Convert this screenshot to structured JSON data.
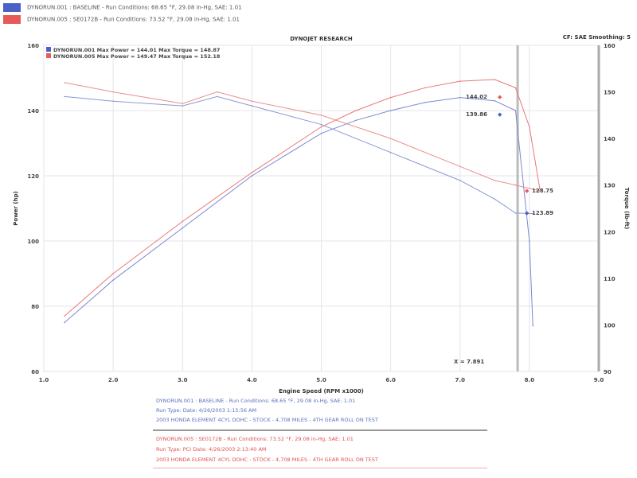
{
  "header": {
    "run1": "DYNORUN.001 : BASELINE  -  Run Conditions: 68.65 °F, 29.08 in-Hg, SAE: 1.01",
    "run2": "DYNORUN.005 : SE0172B  -  Run Conditions: 73.52 °F, 29.08 in-Hg, SAE: 1.01",
    "colors": {
      "run1": "#4a62c8",
      "run2": "#e85a5a"
    }
  },
  "chart_data": {
    "type": "line",
    "title": "DYNOJET RESEARCH",
    "subtitle": "CF: SAE  Smoothing: 5",
    "xlabel": "Engine Speed (RPM x1000)",
    "ylabel": "Power (hp)",
    "y2label": "Torque (lb-ft)",
    "xlim": [
      1.0,
      9.0
    ],
    "ylim": [
      60,
      160
    ],
    "y2lim": [
      90,
      160
    ],
    "xticks": [
      "1.0",
      "2.0",
      "3.0",
      "4.0",
      "5.0",
      "6.0",
      "7.0",
      "8.0",
      "9.0"
    ],
    "yticks": [
      "60",
      "80",
      "100",
      "120",
      "140",
      "160"
    ],
    "y2ticks": [
      "90",
      "100",
      "110",
      "120",
      "130",
      "140",
      "150",
      "160"
    ],
    "grid": true,
    "legend": [
      "DYNORUN.001 Max Power = 144.01    Max Torque = 148.87",
      "DYNORUN.005 Max Power = 149.47    Max Torque = 152.18"
    ],
    "legend_position": "top-left",
    "series": [
      {
        "axis": "power",
        "color": "#7a8ad0",
        "x": [
          1.3,
          2.0,
          3.0,
          4.0,
          5.0,
          5.5,
          6.0,
          6.5,
          7.0,
          7.5,
          7.8,
          8.0,
          8.05
        ],
        "y": [
          75,
          88,
          104,
          120,
          133,
          137,
          140,
          142.5,
          144,
          143,
          140,
          100,
          74
        ]
      },
      {
        "axis": "power",
        "color": "#e87878",
        "x": [
          1.3,
          2.0,
          3.0,
          4.0,
          5.0,
          5.5,
          6.0,
          6.5,
          7.0,
          7.5,
          7.8,
          8.0,
          8.15
        ],
        "y": [
          77,
          90,
          106,
          121,
          135,
          140,
          144,
          147,
          149,
          149.5,
          147,
          135,
          116
        ]
      },
      {
        "axis": "torque",
        "color": "#8a98d0",
        "x": [
          1.3,
          2.0,
          3.0,
          3.5,
          4.0,
          5.0,
          6.0,
          7.0,
          7.5,
          7.8,
          8.05
        ],
        "y": [
          149,
          148,
          147,
          149,
          147,
          143,
          137,
          131,
          127,
          124,
          123.89
        ]
      },
      {
        "axis": "torque",
        "color": "#e89090",
        "x": [
          1.3,
          2.0,
          3.0,
          3.5,
          4.0,
          5.0,
          6.0,
          7.0,
          7.5,
          7.8,
          8.15
        ],
        "y": [
          152,
          150,
          147.5,
          150,
          148,
          145,
          140,
          134,
          131,
          130,
          128.75
        ]
      }
    ],
    "annotations": {
      "p2": "144.02",
      "p1": "139.86",
      "t2": "128.75",
      "t1": "123.89",
      "cursor": "X = 7.891"
    },
    "cursor_x": 7.83
  },
  "footer": {
    "run1": [
      "DYNORUN.001 : BASELINE  -  Run Conditions: 68.65 °F, 29.08 in-Hg, SAE: 1.01",
      "Run Type:  Date: 4/26/2003 1:15:56 AM",
      "2003 HONDA ELEMENT 4CYL DOHC  -  STOCK  -  4,708 MILES  -  4TH GEAR ROLL ON TEST"
    ],
    "run2": [
      "DYNORUN.005 : SE0172B  -  Run Conditions: 73.52 °F, 29.08 in-Hg, SAE: 1.01",
      "Run Type: PCI  Date: 4/26/2003 2:13:40 AM",
      "2003 HONDA ELEMENT 4CYL DOHC  -  STOCK  -  4,708 MILES  -  4TH GEAR ROLL ON TEST"
    ]
  }
}
